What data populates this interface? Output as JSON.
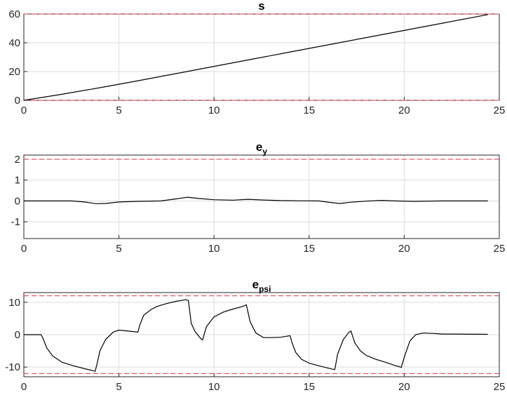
{
  "colors": {
    "series": "#000000",
    "limit": "#e8313b",
    "grid": "#dcdcdc",
    "axis": "#262626"
  },
  "chart_data": [
    {
      "type": "line",
      "title": {
        "base": "s",
        "sub": ""
      },
      "xlim": [
        0,
        25
      ],
      "ylim": [
        0,
        60
      ],
      "xticks": [
        0,
        5,
        10,
        15,
        20,
        25
      ],
      "yticks": [
        0,
        20,
        40,
        60
      ],
      "grid": true,
      "limits": [
        60,
        0
      ],
      "series": [
        {
          "x": [
            0,
            2,
            4,
            6,
            8,
            10,
            12,
            14,
            16,
            18,
            20,
            22,
            24.4
          ],
          "y": [
            0,
            4.2,
            8.8,
            13.6,
            18.6,
            23.6,
            28.6,
            33.6,
            38.6,
            43.6,
            48.6,
            53.6,
            59.6
          ]
        }
      ]
    },
    {
      "type": "line",
      "title": {
        "base": "e",
        "sub": "y"
      },
      "xlim": [
        0,
        25
      ],
      "ylim": [
        -1.8,
        2.2
      ],
      "xticks": [
        0,
        5,
        10,
        15,
        20,
        25
      ],
      "yticks": [
        -1,
        0,
        1,
        2
      ],
      "grid": true,
      "limits": [
        2
      ],
      "series": [
        {
          "x": [
            0,
            2.5,
            3.2,
            3.8,
            4.3,
            5,
            6,
            7.2,
            8,
            8.6,
            9.2,
            10,
            11,
            11.8,
            12.5,
            13.5,
            14.5,
            15.5,
            16.1,
            16.6,
            17.2,
            18,
            18.8,
            19.5,
            20.5,
            22,
            24.4
          ],
          "y": [
            0,
            0,
            -0.05,
            -0.13,
            -0.12,
            -0.05,
            -0.02,
            0,
            0.1,
            0.18,
            0.12,
            0.06,
            0.04,
            0.08,
            0.05,
            0.02,
            0.01,
            0,
            -0.07,
            -0.12,
            -0.06,
            -0.01,
            0.03,
            0,
            -0.02,
            0,
            0
          ]
        }
      ]
    },
    {
      "type": "line",
      "title": {
        "base": "e",
        "sub": "psi"
      },
      "xlim": [
        0,
        25
      ],
      "ylim": [
        -13,
        13
      ],
      "xticks": [
        0,
        5,
        10,
        15,
        20,
        25
      ],
      "yticks": [
        -10,
        0,
        10
      ],
      "grid": true,
      "limits": [
        12,
        -12
      ],
      "series": [
        {
          "x": [
            0,
            0.9,
            1.0,
            1.2,
            1.5,
            2.0,
            2.6,
            3.2,
            3.75,
            3.85,
            4.0,
            4.3,
            4.7,
            5.0,
            5.5,
            6.0,
            6.1,
            6.3,
            6.7,
            7.0,
            7.5,
            8.0,
            8.5,
            8.65,
            8.8,
            9.0,
            9.3,
            9.4,
            9.6,
            10.0,
            10.5,
            11.0,
            11.5,
            11.7,
            11.9,
            12.2,
            12.6,
            13.0,
            13.5,
            14.0,
            14.1,
            14.3,
            14.6,
            15.0,
            15.5,
            16.2,
            16.35,
            16.5,
            16.8,
            17.1,
            17.2,
            17.4,
            17.7,
            18.0,
            18.5,
            19.0,
            19.5,
            19.85,
            20.0,
            20.3,
            20.6,
            21.0,
            21.5,
            22.0,
            24.4
          ],
          "y": [
            0,
            0,
            -1,
            -4,
            -6.5,
            -8.5,
            -9.6,
            -10.5,
            -11.3,
            -9,
            -5,
            -1.5,
            0.8,
            1.4,
            1.1,
            0.8,
            3,
            6,
            7.8,
            8.7,
            9.6,
            10.3,
            10.8,
            10.6,
            3.5,
            1,
            -1.2,
            -1.6,
            2.5,
            5.5,
            7.0,
            7.9,
            8.7,
            9.2,
            4,
            0.5,
            -0.9,
            -0.9,
            -0.8,
            -0.3,
            -2.5,
            -5.5,
            -7.6,
            -8.8,
            -9.6,
            -10.6,
            -10.8,
            -6,
            -1.5,
            0.8,
            1.1,
            -2.5,
            -5,
            -6.4,
            -7.6,
            -8.5,
            -9.5,
            -10.1,
            -7,
            -2,
            0,
            0.5,
            0.4,
            0.2,
            0.1
          ]
        }
      ]
    }
  ]
}
